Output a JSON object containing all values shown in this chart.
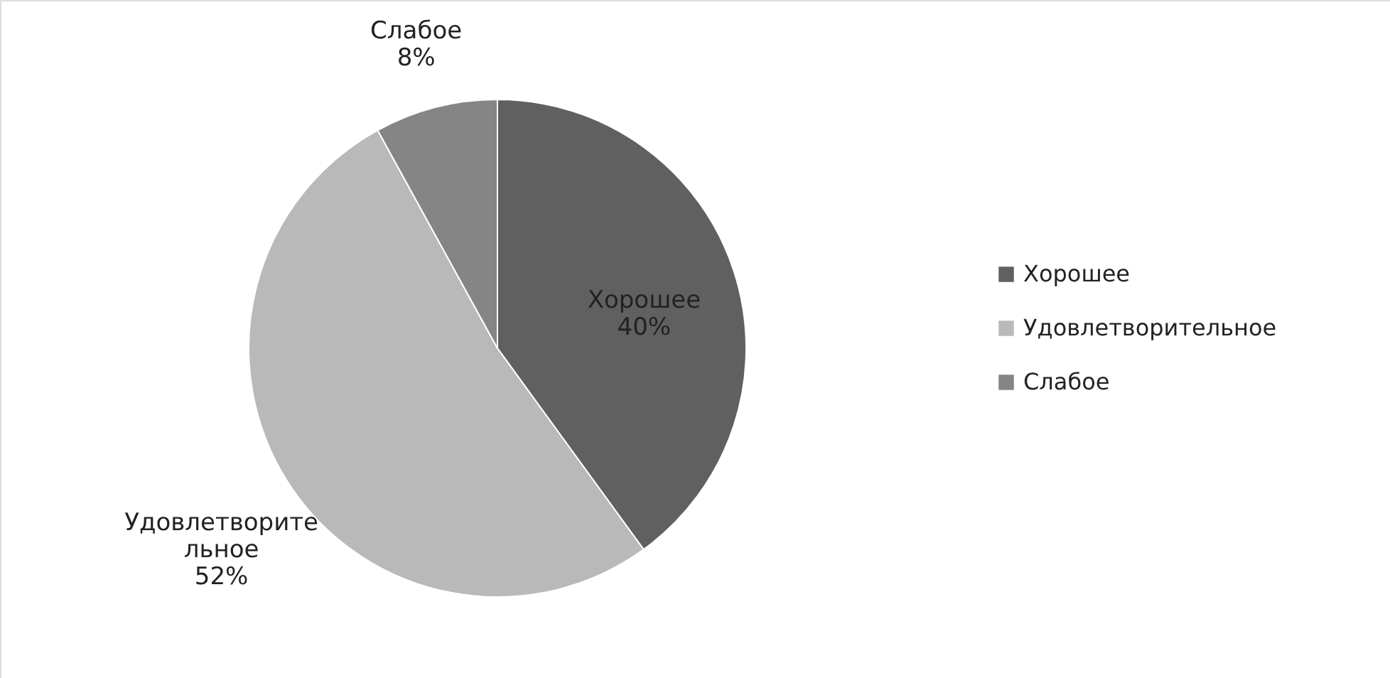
{
  "chart_data": {
    "type": "pie",
    "categories": [
      "Хорошее",
      "Удовлетворительное",
      "Слабое"
    ],
    "values": [
      40,
      52,
      8
    ],
    "colors": [
      "#606060",
      "#b9b9b9",
      "#858585"
    ],
    "value_labels": [
      "Хорошее\n40%",
      "Удовлетворите\nльное\n52%",
      "Слабое\n8%"
    ],
    "legend": "right"
  }
}
